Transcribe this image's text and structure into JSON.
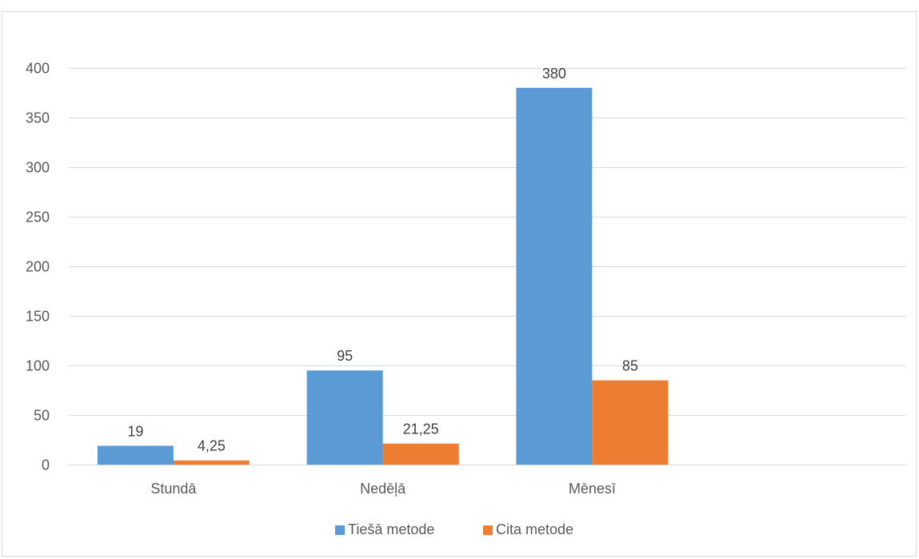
{
  "chart_data": {
    "type": "bar",
    "categories": [
      "Stundā",
      "Nedēļā",
      "Mēnesī"
    ],
    "series": [
      {
        "name": "Tiešā metode",
        "values": [
          19,
          95,
          380
        ],
        "labels": [
          "19",
          "95",
          "380"
        ],
        "color": "#5b9bd5"
      },
      {
        "name": "Cita metode",
        "values": [
          4.25,
          21.25,
          85
        ],
        "labels": [
          "4,25",
          "21,25",
          "85"
        ],
        "color": "#ed7d31"
      }
    ],
    "ylim": [
      0,
      400
    ],
    "yticks": [
      0,
      50,
      100,
      150,
      200,
      250,
      300,
      350,
      400
    ],
    "grid": true,
    "legend_position": "bottom",
    "gridline_color": "#d9d9d9"
  }
}
